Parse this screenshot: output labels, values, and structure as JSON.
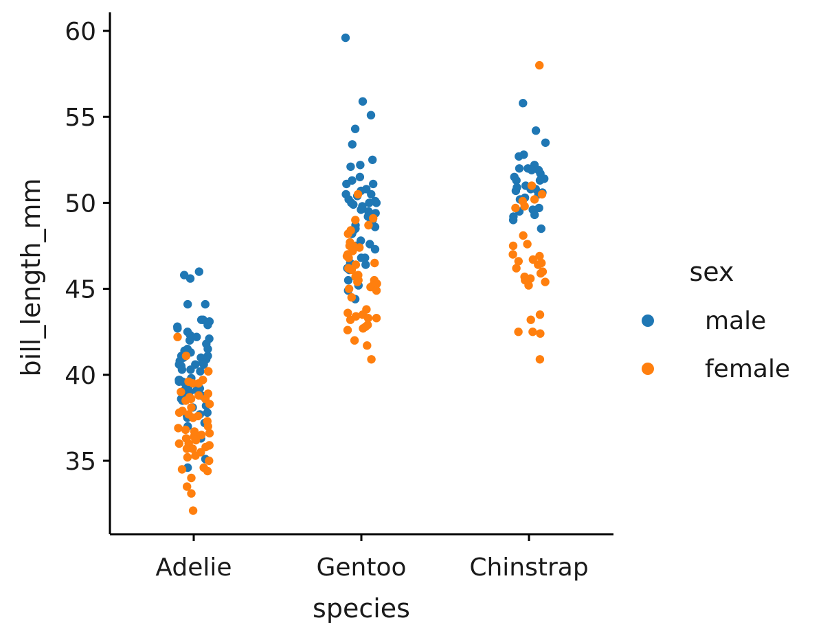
{
  "chart_data": {
    "type": "scatter",
    "subtype": "strip",
    "title": "",
    "xlabel": "species",
    "ylabel": "bill_length_mm",
    "categories": [
      "Adelie",
      "Gentoo",
      "Chinstrap"
    ],
    "ylim": [
      30.7,
      61
    ],
    "yticks": [
      35,
      40,
      45,
      50,
      55,
      60
    ],
    "grid": false,
    "legend": {
      "title": "sex",
      "placement": "right"
    },
    "series": [
      {
        "name": "male",
        "color": "#1f77b4",
        "points": {
          "Adelie": [
            46.0,
            45.8,
            45.6,
            44.1,
            44.1,
            43.2,
            43.2,
            43.1,
            42.9,
            42.8,
            42.7,
            42.5,
            42.3,
            42.2,
            42.1,
            42.0,
            41.8,
            41.5,
            41.5,
            41.4,
            41.3,
            41.1,
            41.1,
            41.0,
            41.0,
            40.9,
            40.9,
            40.8,
            40.8,
            40.7,
            40.6,
            40.6,
            40.6,
            40.5,
            40.3,
            40.3,
            40.2,
            39.8,
            39.7,
            39.7,
            39.6,
            39.6,
            39.2,
            39.2,
            39.2,
            39.1,
            39.0,
            38.9,
            38.8,
            38.6,
            38.5,
            38.2,
            38.1,
            37.8,
            37.7,
            37.6,
            37.5,
            37.2,
            37.0,
            36.3,
            35.1,
            34.6
          ],
          "Gentoo": [
            59.6,
            55.9,
            55.1,
            54.3,
            53.4,
            52.5,
            52.2,
            52.1,
            51.5,
            51.3,
            51.1,
            51.1,
            50.8,
            50.7,
            50.5,
            50.5,
            50.4,
            50.2,
            50.1,
            50.0,
            50.0,
            50.0,
            49.9,
            49.8,
            49.6,
            49.5,
            49.5,
            49.4,
            49.2,
            49.1,
            49.0,
            48.8,
            48.7,
            48.6,
            48.5,
            48.4,
            48.2,
            47.8,
            47.6,
            47.5,
            47.3,
            46.8,
            46.8,
            46.5,
            46.4,
            46.2,
            46.1,
            45.5,
            45.2,
            45.2,
            45.1,
            44.9,
            44.4
          ],
          "Chinstrap": [
            55.8,
            54.2,
            53.5,
            52.8,
            52.7,
            52.2,
            52.0,
            52.0,
            51.9,
            51.9,
            51.7,
            51.5,
            51.4,
            51.3,
            51.3,
            51.0,
            50.9,
            50.8,
            50.8,
            50.7,
            50.6,
            50.5,
            50.3,
            50.2,
            49.7,
            49.6,
            49.5,
            49.3,
            49.2,
            49.0,
            48.5
          ]
        }
      },
      {
        "name": "female",
        "color": "#ff7f0e",
        "points": {
          "Adelie": [
            42.2,
            41.1,
            40.2,
            40.2,
            39.7,
            39.6,
            39.5,
            39.5,
            39.0,
            38.9,
            38.8,
            38.7,
            38.6,
            38.6,
            38.5,
            38.3,
            38.1,
            37.9,
            37.8,
            37.7,
            37.6,
            37.5,
            37.3,
            37.0,
            36.9,
            36.8,
            36.7,
            36.6,
            36.5,
            36.4,
            36.3,
            36.2,
            36.0,
            36.0,
            35.9,
            35.8,
            35.7,
            35.7,
            35.5,
            35.3,
            35.2,
            35.0,
            34.6,
            34.5,
            34.4,
            34.0,
            33.5,
            33.1,
            32.1
          ],
          "Gentoo": [
            50.5,
            49.1,
            49.0,
            48.7,
            48.4,
            48.2,
            47.7,
            47.5,
            47.5,
            47.4,
            47.2,
            47.0,
            46.9,
            46.8,
            46.5,
            46.4,
            46.2,
            46.1,
            45.8,
            45.7,
            45.5,
            45.5,
            45.4,
            45.3,
            45.2,
            45.1,
            45.0,
            44.9,
            44.5,
            43.8,
            43.6,
            43.5,
            43.4,
            43.3,
            43.3,
            43.2,
            42.9,
            42.8,
            42.7,
            42.6,
            42.0,
            41.7,
            40.9
          ],
          "Chinstrap": [
            58.0,
            51.0,
            50.5,
            50.2,
            50.1,
            49.8,
            49.7,
            48.1,
            47.6,
            47.5,
            47.0,
            46.9,
            46.7,
            46.6,
            46.5,
            46.4,
            46.2,
            46.0,
            45.9,
            45.7,
            45.6,
            45.5,
            45.4,
            45.2,
            43.5,
            43.2,
            42.5,
            42.5,
            42.4,
            40.9
          ]
        }
      }
    ]
  }
}
